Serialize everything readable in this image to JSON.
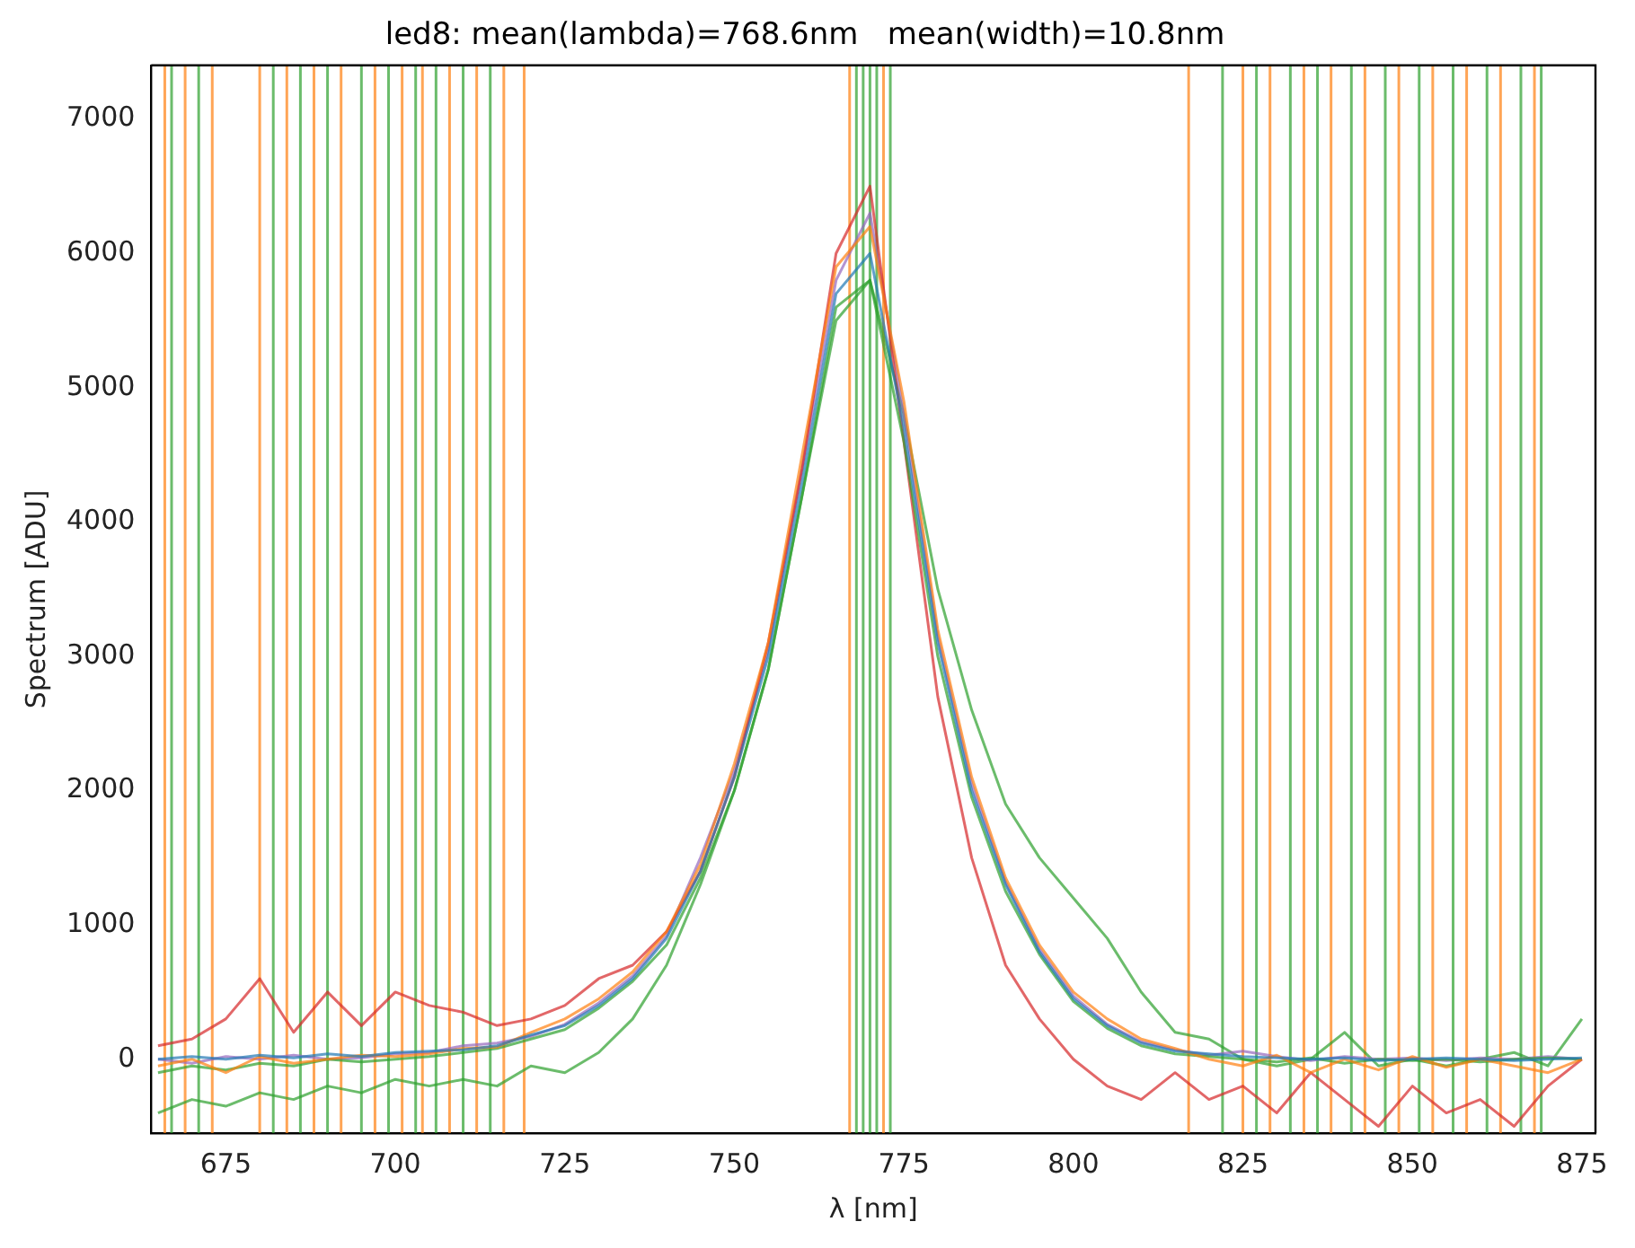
{
  "chart_data": {
    "type": "line",
    "title": "led8: mean(lambda)=768.6nm   mean(width)=10.8nm",
    "xlabel": "λ [nm]",
    "ylabel": "Spectrum [ADU]",
    "x": [
      665,
      670,
      675,
      680,
      685,
      690,
      695,
      700,
      705,
      710,
      715,
      720,
      725,
      730,
      735,
      740,
      745,
      750,
      755,
      760,
      765,
      770,
      775,
      780,
      785,
      790,
      795,
      800,
      805,
      810,
      815,
      820,
      825,
      830,
      835,
      840,
      845,
      850,
      855,
      860,
      865,
      870,
      875
    ],
    "xlim": [
      664,
      877
    ],
    "ylim": [
      -550,
      7400
    ],
    "xticks": [
      675,
      700,
      725,
      750,
      775,
      800,
      825,
      850,
      875
    ],
    "yticks": [
      0,
      1000,
      2000,
      3000,
      4000,
      5000,
      6000,
      7000
    ],
    "grid": false,
    "legend": false,
    "marker": "none",
    "line_style": "solid",
    "series": [
      {
        "color": "#1f77b4",
        "values": [
          0,
          20,
          0,
          30,
          10,
          40,
          20,
          50,
          60,
          70,
          100,
          180,
          250,
          400,
          600,
          900,
          1400,
          2100,
          3000,
          4300,
          5700,
          6000,
          4700,
          3100,
          2000,
          1300,
          800,
          450,
          250,
          120,
          60,
          40,
          20,
          10,
          0,
          10,
          -10,
          0,
          10,
          0,
          -10,
          0,
          10
        ]
      },
      {
        "color": "#ff7f0e",
        "values": [
          -50,
          0,
          -100,
          20,
          -30,
          0,
          30,
          20,
          40,
          80,
          90,
          200,
          300,
          450,
          650,
          950,
          1450,
          2200,
          3100,
          4500,
          5900,
          6200,
          4900,
          3200,
          2100,
          1350,
          850,
          500,
          300,
          150,
          80,
          0,
          -50,
          30,
          -100,
          0,
          -80,
          20,
          -60,
          0,
          -50,
          -100,
          0
        ]
      },
      {
        "color": "#2ca02c",
        "values": [
          -100,
          -50,
          -80,
          -30,
          -50,
          0,
          -20,
          0,
          20,
          50,
          80,
          150,
          220,
          380,
          580,
          850,
          1350,
          2000,
          2900,
          4200,
          5500,
          5800,
          4600,
          3000,
          1950,
          1250,
          780,
          430,
          230,
          100,
          40,
          20,
          0,
          -20,
          10,
          -30,
          0,
          -10,
          0,
          -20,
          0,
          10,
          0
        ]
      },
      {
        "color": "#d62728",
        "values": [
          100,
          150,
          300,
          600,
          200,
          500,
          250,
          500,
          400,
          350,
          250,
          300,
          400,
          600,
          700,
          950,
          1400,
          2100,
          3100,
          4400,
          6000,
          6500,
          4600,
          2700,
          1500,
          700,
          300,
          0,
          -200,
          -300,
          -100,
          -300,
          -200,
          -400,
          -100,
          -300,
          -500,
          -200,
          -400,
          -300,
          -500,
          -200,
          0
        ]
      },
      {
        "color": "#9467bd",
        "values": [
          0,
          -30,
          20,
          0,
          30,
          0,
          10,
          40,
          50,
          100,
          120,
          170,
          260,
          420,
          620,
          920,
          1500,
          2150,
          3050,
          4400,
          5800,
          6300,
          4800,
          3150,
          2050,
          1320,
          820,
          470,
          260,
          130,
          70,
          30,
          60,
          20,
          -10,
          20,
          0,
          10,
          -10,
          10,
          0,
          20,
          0
        ]
      },
      {
        "color": "#2ca02c",
        "values": [
          -400,
          -300,
          -350,
          -250,
          -300,
          -200,
          -250,
          -150,
          -200,
          -150,
          -200,
          -50,
          -100,
          50,
          300,
          700,
          1300,
          2000,
          2900,
          4200,
          5600,
          5800,
          4800,
          3500,
          2600,
          1900,
          1500,
          1200,
          900,
          500,
          200,
          150,
          0,
          -50,
          0,
          200,
          -50,
          0,
          -50,
          0,
          50,
          -50,
          300
        ]
      }
    ],
    "ref_lines": [
      {
        "axis": "x",
        "value": 666,
        "color": "#ff7f0e"
      },
      {
        "axis": "x",
        "value": 669,
        "color": "#ff7f0e"
      },
      {
        "axis": "x",
        "value": 673,
        "color": "#ff7f0e"
      },
      {
        "axis": "x",
        "value": 680,
        "color": "#ff7f0e"
      },
      {
        "axis": "x",
        "value": 684,
        "color": "#ff7f0e"
      },
      {
        "axis": "x",
        "value": 688,
        "color": "#ff7f0e"
      },
      {
        "axis": "x",
        "value": 692,
        "color": "#ff7f0e"
      },
      {
        "axis": "x",
        "value": 697,
        "color": "#ff7f0e"
      },
      {
        "axis": "x",
        "value": 701,
        "color": "#ff7f0e"
      },
      {
        "axis": "x",
        "value": 704,
        "color": "#ff7f0e"
      },
      {
        "axis": "x",
        "value": 708,
        "color": "#ff7f0e"
      },
      {
        "axis": "x",
        "value": 712,
        "color": "#ff7f0e"
      },
      {
        "axis": "x",
        "value": 716,
        "color": "#ff7f0e"
      },
      {
        "axis": "x",
        "value": 719,
        "color": "#ff7f0e"
      },
      {
        "axis": "x",
        "value": 767,
        "color": "#ff7f0e"
      },
      {
        "axis": "x",
        "value": 772,
        "color": "#ff7f0e"
      },
      {
        "axis": "x",
        "value": 817,
        "color": "#ff7f0e"
      },
      {
        "axis": "x",
        "value": 825,
        "color": "#ff7f0e"
      },
      {
        "axis": "x",
        "value": 829,
        "color": "#ff7f0e"
      },
      {
        "axis": "x",
        "value": 834,
        "color": "#ff7f0e"
      },
      {
        "axis": "x",
        "value": 838,
        "color": "#ff7f0e"
      },
      {
        "axis": "x",
        "value": 843,
        "color": "#ff7f0e"
      },
      {
        "axis": "x",
        "value": 848,
        "color": "#ff7f0e"
      },
      {
        "axis": "x",
        "value": 853,
        "color": "#ff7f0e"
      },
      {
        "axis": "x",
        "value": 858,
        "color": "#ff7f0e"
      },
      {
        "axis": "x",
        "value": 863,
        "color": "#ff7f0e"
      },
      {
        "axis": "x",
        "value": 868,
        "color": "#ff7f0e"
      },
      {
        "axis": "x",
        "value": 667,
        "color": "#2ca02c"
      },
      {
        "axis": "x",
        "value": 671,
        "color": "#2ca02c"
      },
      {
        "axis": "x",
        "value": 682,
        "color": "#2ca02c"
      },
      {
        "axis": "x",
        "value": 686,
        "color": "#2ca02c"
      },
      {
        "axis": "x",
        "value": 690,
        "color": "#2ca02c"
      },
      {
        "axis": "x",
        "value": 695,
        "color": "#2ca02c"
      },
      {
        "axis": "x",
        "value": 699,
        "color": "#2ca02c"
      },
      {
        "axis": "x",
        "value": 703,
        "color": "#2ca02c"
      },
      {
        "axis": "x",
        "value": 706,
        "color": "#2ca02c"
      },
      {
        "axis": "x",
        "value": 710,
        "color": "#2ca02c"
      },
      {
        "axis": "x",
        "value": 714,
        "color": "#2ca02c"
      },
      {
        "axis": "x",
        "value": 768,
        "color": "#2ca02c"
      },
      {
        "axis": "x",
        "value": 769,
        "color": "#2ca02c"
      },
      {
        "axis": "x",
        "value": 770,
        "color": "#2ca02c"
      },
      {
        "axis": "x",
        "value": 771,
        "color": "#2ca02c"
      },
      {
        "axis": "x",
        "value": 773,
        "color": "#2ca02c"
      },
      {
        "axis": "x",
        "value": 822,
        "color": "#2ca02c"
      },
      {
        "axis": "x",
        "value": 827,
        "color": "#2ca02c"
      },
      {
        "axis": "x",
        "value": 832,
        "color": "#2ca02c"
      },
      {
        "axis": "x",
        "value": 836,
        "color": "#2ca02c"
      },
      {
        "axis": "x",
        "value": 841,
        "color": "#2ca02c"
      },
      {
        "axis": "x",
        "value": 846,
        "color": "#2ca02c"
      },
      {
        "axis": "x",
        "value": 851,
        "color": "#2ca02c"
      },
      {
        "axis": "x",
        "value": 856,
        "color": "#2ca02c"
      },
      {
        "axis": "x",
        "value": 861,
        "color": "#2ca02c"
      },
      {
        "axis": "x",
        "value": 866,
        "color": "#2ca02c"
      },
      {
        "axis": "x",
        "value": 869,
        "color": "#2ca02c"
      }
    ]
  }
}
